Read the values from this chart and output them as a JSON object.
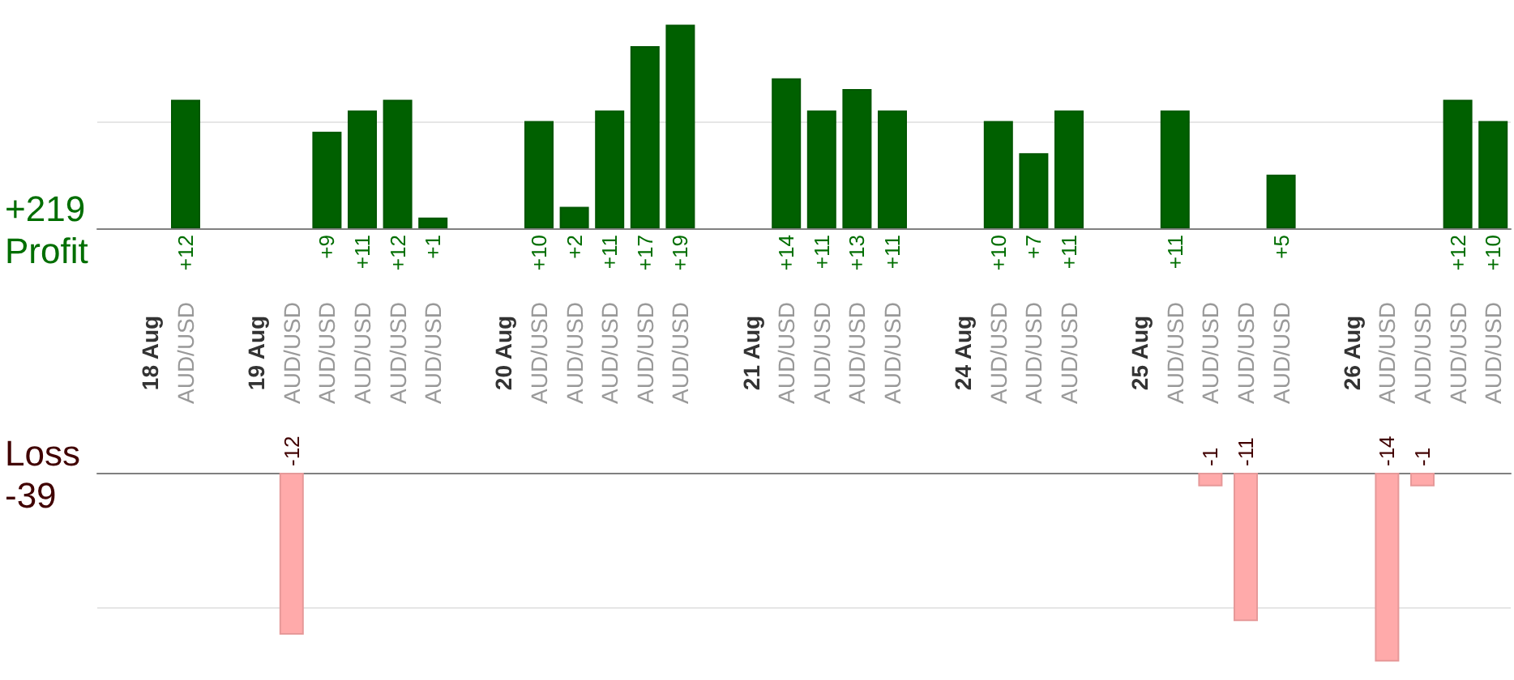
{
  "chart_data": [
    {
      "type": "bar",
      "ylabel": "Profit",
      "annotations": [
        "+219"
      ],
      "categories": [
        null,
        "18 Aug",
        "AUD/USD",
        null,
        "19 Aug",
        "AUD/USD",
        "AUD/USD",
        "AUD/USD",
        "AUD/USD",
        "AUD/USD",
        null,
        "20 Aug",
        "AUD/USD",
        "AUD/USD",
        "AUD/USD",
        "AUD/USD",
        "AUD/USD",
        null,
        "21 Aug",
        "AUD/USD",
        "AUD/USD",
        "AUD/USD",
        "AUD/USD",
        null,
        "24 Aug",
        "AUD/USD",
        "AUD/USD",
        "AUD/USD",
        null,
        "25 Aug",
        "AUD/USD",
        "AUD/USD",
        "AUD/USD",
        "AUD/USD",
        null,
        "26 Aug",
        "AUD/USD",
        "AUD/USD",
        "AUD/USD",
        "AUD/USD"
      ],
      "values": [
        null,
        null,
        12,
        null,
        null,
        null,
        9,
        11,
        12,
        1,
        null,
        null,
        10,
        2,
        11,
        17,
        19,
        null,
        null,
        14,
        11,
        13,
        11,
        null,
        null,
        10,
        7,
        11,
        null,
        null,
        11,
        null,
        null,
        5,
        null,
        null,
        null,
        null,
        12,
        10
      ],
      "value_labels": [
        null,
        null,
        "+12",
        null,
        null,
        null,
        "+9",
        "+11",
        "+12",
        "+1",
        null,
        null,
        "+10",
        "+2",
        "+11",
        "+17",
        "+19",
        null,
        null,
        "+14",
        "+11",
        "+13",
        "+11",
        null,
        null,
        "+10",
        "+7",
        "+11",
        null,
        null,
        "+11",
        null,
        null,
        "+5",
        null,
        null,
        null,
        null,
        "+12",
        "+10"
      ],
      "color": "#006000",
      "ref_lines": [
        {
          "axis": "y",
          "value": 10,
          "color": "#e6e6e6"
        }
      ],
      "tick_labels": "x"
    },
    {
      "type": "bar",
      "ylabel": "Loss",
      "annotations": [
        "-39"
      ],
      "categories": [
        null,
        null,
        null,
        null,
        null,
        null,
        null,
        null,
        null,
        null,
        null,
        null,
        null,
        null,
        null,
        null,
        null,
        null,
        null,
        null,
        null,
        null,
        null,
        null,
        null,
        null,
        null,
        null,
        null,
        null,
        null,
        null,
        null,
        null,
        null,
        null,
        null,
        null,
        null,
        null
      ],
      "values": [
        null,
        null,
        null,
        null,
        null,
        -12,
        null,
        null,
        null,
        null,
        null,
        null,
        null,
        null,
        null,
        null,
        null,
        null,
        null,
        null,
        null,
        null,
        null,
        null,
        null,
        null,
        null,
        null,
        null,
        null,
        null,
        -1,
        -11,
        null,
        null,
        null,
        -14,
        -1,
        null,
        null
      ],
      "color": "#ffaaaa",
      "data_labels": true,
      "ref_lines": [
        {
          "axis": "y",
          "value": -10,
          "color": "#e6e6e6"
        }
      ],
      "tick_labels": false
    }
  ]
}
